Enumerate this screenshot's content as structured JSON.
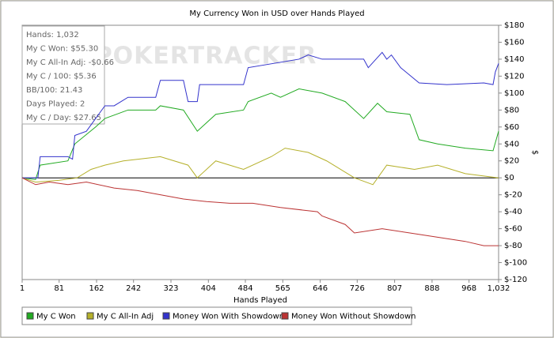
{
  "chart_data": {
    "type": "line",
    "title": "My Currency Won in USD over Hands Played",
    "xlabel": "Hands Played",
    "ylabel": "$",
    "watermark": "POKERTRACKER",
    "stats": [
      "Hands: 1,032",
      "My C Won: $55.30",
      "My C All-In Adj: -$0.66",
      "My C / 100: $5.36",
      "BB/100: 21.43",
      "Days Played: 2",
      "My C / Day: $27.65"
    ],
    "xlim": [
      1,
      1032
    ],
    "xticks": [
      1,
      81,
      162,
      242,
      323,
      404,
      484,
      565,
      646,
      726,
      807,
      888,
      968,
      {
        "value": 1032,
        "label": "1,032"
      }
    ],
    "ylim": [
      -120,
      180
    ],
    "yticks": [
      {
        "value": 180,
        "label": "$180"
      },
      {
        "value": 160,
        "label": "$160"
      },
      {
        "value": 140,
        "label": "$140"
      },
      {
        "value": 120,
        "label": "$120"
      },
      {
        "value": 100,
        "label": "$100"
      },
      {
        "value": 80,
        "label": "$80"
      },
      {
        "value": 60,
        "label": "$60"
      },
      {
        "value": 40,
        "label": "$40"
      },
      {
        "value": 20,
        "label": "$20"
      },
      {
        "value": 0,
        "label": "$0"
      },
      {
        "value": -20,
        "label": "$-20"
      },
      {
        "value": -40,
        "label": "$-40"
      },
      {
        "value": -60,
        "label": "$-60"
      },
      {
        "value": -80,
        "label": "$-80"
      },
      {
        "value": -100,
        "label": "$-100"
      },
      {
        "value": -120,
        "label": "$-120"
      }
    ],
    "grid": false,
    "legend": "bottom",
    "series": [
      {
        "name": "My C Won",
        "color": "#22aa22",
        "x": [
          1,
          30,
          40,
          100,
          115,
          160,
          180,
          230,
          290,
          300,
          350,
          380,
          420,
          480,
          490,
          540,
          560,
          600,
          650,
          700,
          740,
          770,
          790,
          840,
          860,
          900,
          960,
          1020,
          1032
        ],
        "values": [
          0,
          -2,
          15,
          20,
          40,
          60,
          70,
          80,
          80,
          85,
          80,
          55,
          75,
          80,
          90,
          100,
          95,
          105,
          100,
          90,
          70,
          88,
          78,
          75,
          45,
          40,
          35,
          32,
          55
        ]
      },
      {
        "name": "My C All-In Adj",
        "color": "#b5b02a",
        "x": [
          1,
          30,
          80,
          120,
          150,
          180,
          220,
          300,
          360,
          380,
          420,
          480,
          540,
          570,
          620,
          660,
          720,
          760,
          790,
          850,
          900,
          960,
          1032
        ],
        "values": [
          0,
          -5,
          -3,
          0,
          10,
          15,
          20,
          25,
          15,
          0,
          20,
          10,
          25,
          35,
          30,
          20,
          0,
          -8,
          15,
          10,
          15,
          5,
          0
        ]
      },
      {
        "name": "Money Won With Showdown",
        "color": "#3333cc",
        "x": [
          1,
          35,
          40,
          100,
          110,
          115,
          140,
          160,
          180,
          200,
          230,
          290,
          300,
          350,
          360,
          380,
          385,
          480,
          490,
          600,
          620,
          650,
          740,
          750,
          780,
          790,
          800,
          820,
          860,
          920,
          1000,
          1020,
          1025,
          1032
        ],
        "values": [
          0,
          0,
          25,
          25,
          22,
          50,
          55,
          70,
          85,
          85,
          95,
          95,
          115,
          115,
          90,
          90,
          110,
          110,
          130,
          140,
          145,
          140,
          140,
          130,
          148,
          140,
          145,
          130,
          112,
          110,
          112,
          110,
          125,
          135
        ]
      },
      {
        "name": "Money Won Without Showdown",
        "color": "#bb3333",
        "x": [
          1,
          30,
          60,
          100,
          140,
          200,
          250,
          300,
          350,
          400,
          450,
          500,
          560,
          640,
          650,
          700,
          720,
          780,
          840,
          900,
          960,
          1000,
          1032
        ],
        "values": [
          0,
          -8,
          -5,
          -8,
          -5,
          -12,
          -15,
          -20,
          -25,
          -28,
          -30,
          -30,
          -35,
          -40,
          -45,
          -55,
          -65,
          -60,
          -65,
          -70,
          -75,
          -80,
          -80
        ]
      }
    ]
  }
}
